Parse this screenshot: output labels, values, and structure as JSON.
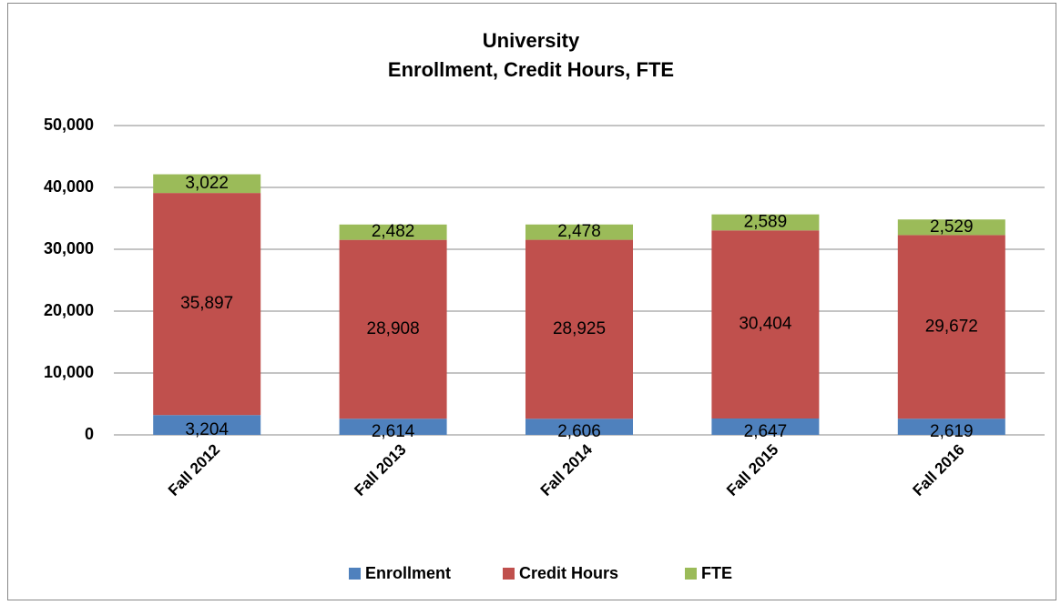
{
  "chart_data": {
    "type": "stacked_bar",
    "title": "University",
    "subtitle": "Enrollment, Credit Hours, FTE",
    "categories": [
      "Fall 2012",
      "Fall 2013",
      "Fall 2014",
      "Fall 2015",
      "Fall 2016"
    ],
    "series": [
      {
        "name": "Enrollment",
        "color": "#4f81bd",
        "values": [
          3204,
          2614,
          2606,
          2647,
          2619
        ],
        "value_labels": [
          "3,204",
          "2,614",
          "2,606",
          "2,647",
          "2,619"
        ]
      },
      {
        "name": "Credit Hours",
        "color": "#c0504d",
        "values": [
          35897,
          28908,
          28925,
          30404,
          29672
        ],
        "value_labels": [
          "35,897",
          "28,908",
          "28,925",
          "30,404",
          "29,672"
        ]
      },
      {
        "name": "FTE",
        "color": "#9bbb59",
        "values": [
          3022,
          2482,
          2478,
          2589,
          2529
        ],
        "value_labels": [
          "3,022",
          "2,482",
          "2,478",
          "2,589",
          "2,529"
        ]
      }
    ],
    "ylim": [
      0,
      50000
    ],
    "yticks": [
      0,
      {
        "value": 10000,
        "label": "10,000"
      },
      {
        "value": 20000,
        "label": "20,000"
      },
      {
        "value": 30000,
        "label": "30,000"
      },
      {
        "value": 40000,
        "label": "40,000"
      },
      {
        "value": 50000,
        "label": "50,000"
      }
    ],
    "grid": true,
    "legend": "bottom"
  }
}
